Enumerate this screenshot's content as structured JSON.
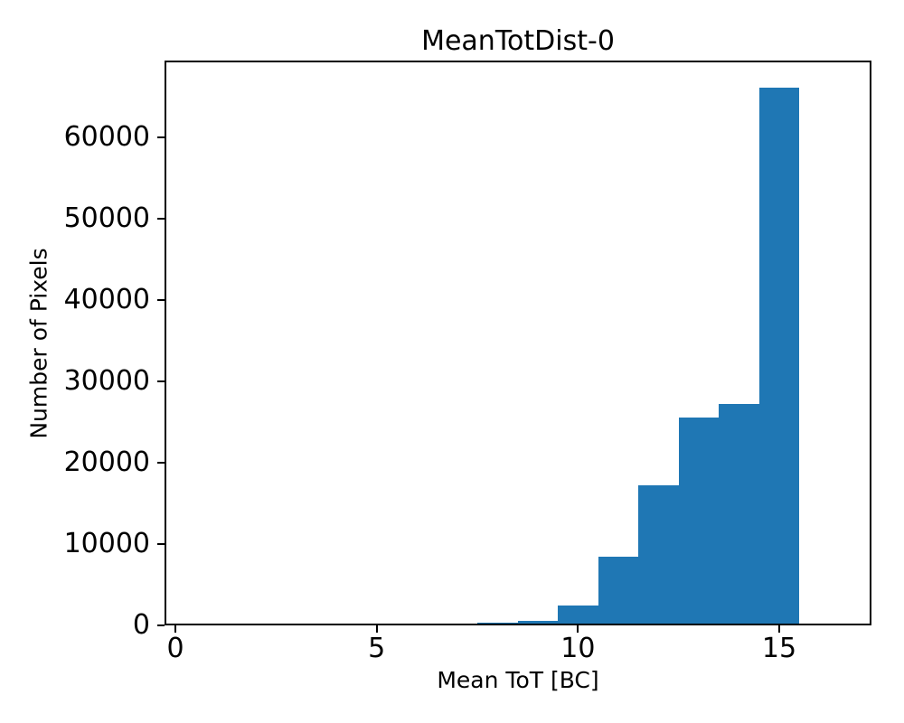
{
  "chart_data": {
    "type": "bar",
    "subtype": "histogram",
    "title": "MeanTotDist-0",
    "xlabel": "Mean ToT [BC]",
    "ylabel": "Number of Pixels",
    "bin_edges": [
      7.5,
      8.5,
      9.5,
      10.5,
      11.5,
      12.5,
      13.5,
      14.5,
      15.5
    ],
    "counts": [
      300,
      550,
      2500,
      8400,
      17200,
      25600,
      27200,
      66100
    ],
    "xticks": [
      0,
      5,
      10,
      15
    ],
    "yticks": [
      0,
      10000,
      20000,
      30000,
      40000,
      50000,
      60000
    ],
    "xlim": [
      -0.27,
      17.29
    ],
    "ylim": [
      0,
      69444
    ],
    "bar_color": "#1f77b4",
    "axis_color": "#000000",
    "background_color": "#ffffff",
    "grid": false,
    "legend_position": "none"
  }
}
